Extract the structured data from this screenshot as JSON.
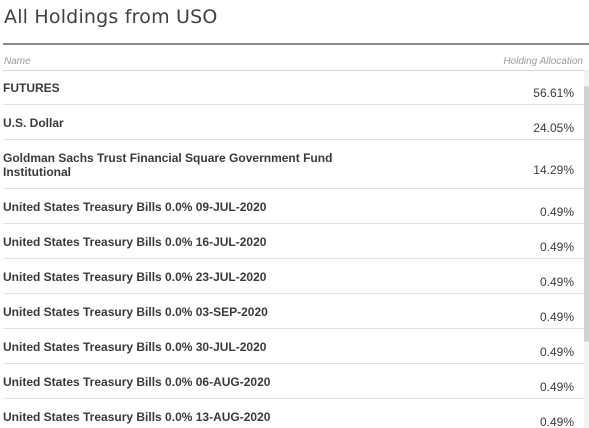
{
  "page": {
    "title": "All Holdings from USO"
  },
  "table": {
    "columns": {
      "name": "Name",
      "allocation": "Holding Allocation"
    },
    "rows": [
      {
        "name": "FUTURES",
        "allocation": "56.61%"
      },
      {
        "name": "U.S. Dollar",
        "allocation": "24.05%"
      },
      {
        "name": "Goldman Sachs Trust Financial Square Government Fund Institutional",
        "allocation": "14.29%"
      },
      {
        "name": "United States Treasury Bills 0.0% 09-JUL-2020",
        "allocation": "0.49%"
      },
      {
        "name": "United States Treasury Bills 0.0% 16-JUL-2020",
        "allocation": "0.49%"
      },
      {
        "name": "United States Treasury Bills 0.0% 23-JUL-2020",
        "allocation": "0.49%"
      },
      {
        "name": "United States Treasury Bills 0.0% 03-SEP-2020",
        "allocation": "0.49%"
      },
      {
        "name": "United States Treasury Bills 0.0% 30-JUL-2020",
        "allocation": "0.49%"
      },
      {
        "name": "United States Treasury Bills 0.0% 06-AUG-2020",
        "allocation": "0.49%"
      },
      {
        "name": "United States Treasury Bills 0.0% 13-AUG-2020",
        "allocation": "0.49%"
      }
    ]
  }
}
